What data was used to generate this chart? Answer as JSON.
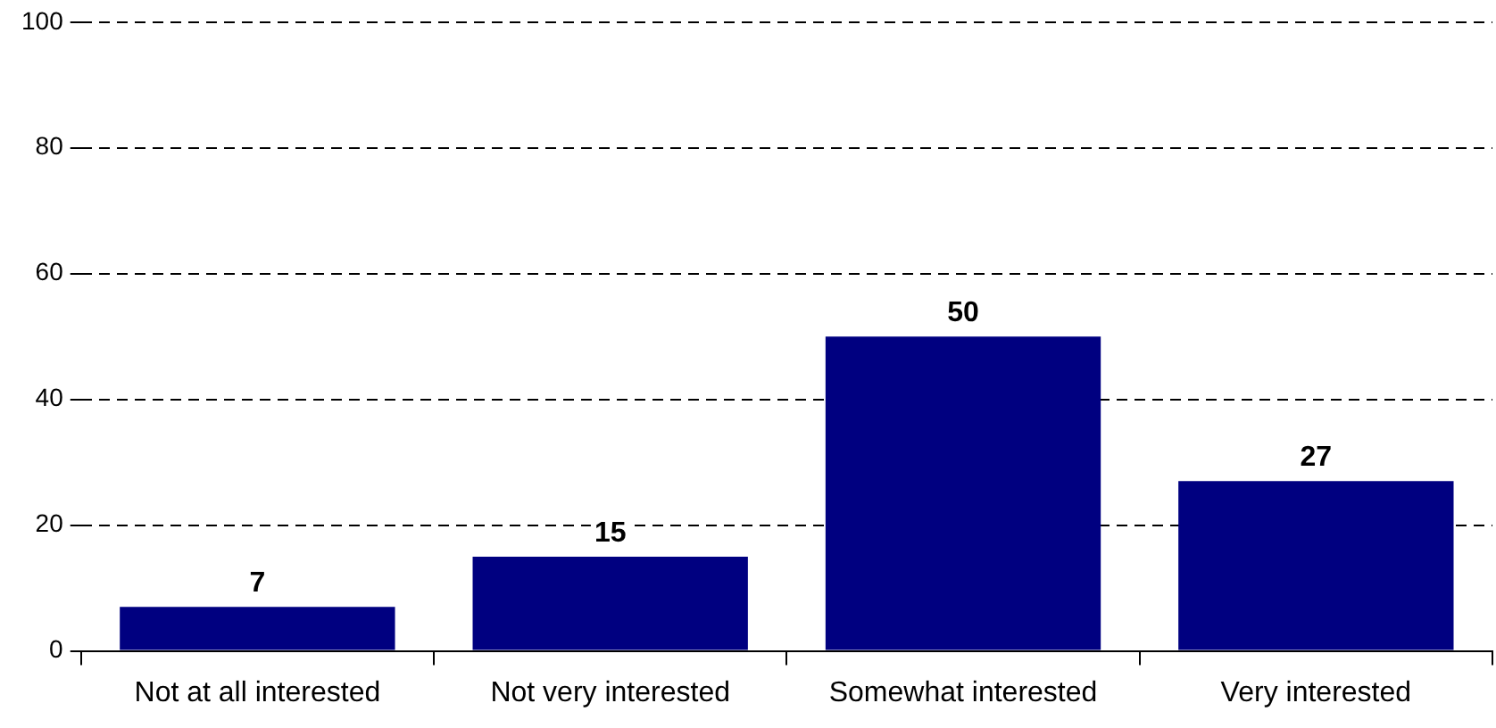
{
  "chart_data": {
    "type": "bar",
    "categories": [
      "Not at all interested",
      "Not very interested",
      "Somewhat interested",
      "Very interested"
    ],
    "values": [
      7,
      15,
      50,
      27
    ],
    "color": "#000080",
    "ylim": [
      0,
      100
    ],
    "yticks": [
      0,
      20,
      40,
      60,
      80,
      100
    ],
    "grid": "y",
    "data_labels": true,
    "legend": false
  }
}
